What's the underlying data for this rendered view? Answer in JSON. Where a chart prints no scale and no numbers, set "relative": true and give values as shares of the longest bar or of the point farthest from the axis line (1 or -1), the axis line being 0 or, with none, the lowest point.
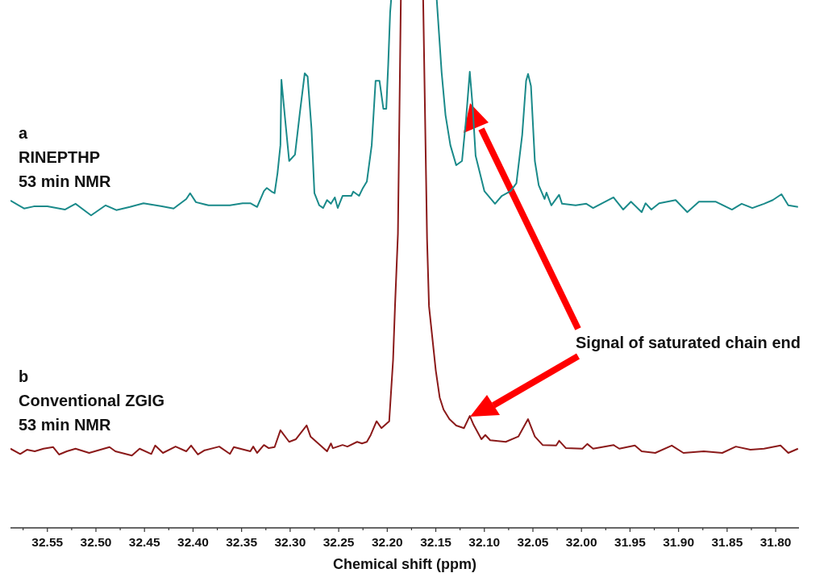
{
  "chart_data": {
    "type": "line",
    "relative": true,
    "xlabel": "Chemical shift (ppm)",
    "xlim": [
      32.588,
      31.776
    ],
    "xticks": [
      32.55,
      {
        "value": 32.5,
        "label": "32.50"
      },
      32.45,
      {
        "value": 32.4,
        "label": "32.40"
      },
      32.35,
      {
        "value": 32.3,
        "label": "32.30"
      },
      32.25,
      {
        "value": 32.2,
        "label": "32.20"
      },
      32.15,
      {
        "value": 32.1,
        "label": "32.10"
      },
      32.05,
      {
        "value": 32.0,
        "label": "32.00"
      },
      31.95,
      {
        "value": 31.9,
        "label": "31.90"
      },
      31.85,
      {
        "value": 31.8,
        "label": "31.80"
      },
      {
        "value": 32.575,
        "label": null
      },
      {
        "value": 32.525,
        "label": null
      },
      {
        "value": 32.475,
        "label": null
      },
      {
        "value": 32.425,
        "label": null
      },
      {
        "value": 32.375,
        "label": null
      },
      {
        "value": 32.325,
        "label": null
      },
      {
        "value": 32.275,
        "label": null
      },
      {
        "value": 32.225,
        "label": null
      },
      {
        "value": 32.175,
        "label": null
      },
      {
        "value": 32.125,
        "label": null
      },
      {
        "value": 32.075,
        "label": null
      },
      {
        "value": 32.025,
        "label": null
      },
      {
        "value": 31.975,
        "label": null
      },
      {
        "value": 31.925,
        "label": null
      },
      {
        "value": 31.875,
        "label": null
      },
      {
        "value": 31.825,
        "label": null
      }
    ],
    "grid": false,
    "marker": "none",
    "line_style": "solid",
    "series": [
      {
        "name": "RINEPTHP",
        "color": "#1a8a8a",
        "x": [
          32.588,
          32.574,
          32.564,
          32.55,
          32.532,
          32.521,
          32.505,
          32.49,
          32.479,
          32.465,
          32.451,
          32.432,
          32.42,
          32.407,
          32.403,
          32.397,
          32.384,
          32.362,
          32.349,
          32.341,
          32.334,
          32.327,
          32.324,
          32.319,
          32.316,
          32.313,
          32.31,
          32.309,
          32.305,
          32.301,
          32.295,
          32.29,
          32.285,
          32.282,
          32.278,
          32.275,
          32.27,
          32.266,
          32.262,
          32.258,
          32.254,
          32.251,
          32.246,
          32.237,
          32.235,
          32.229,
          32.225,
          32.221,
          32.216,
          32.212,
          32.208,
          32.204,
          32.201,
          32.199,
          32.197,
          32.196,
          32.17,
          32.149,
          32.144,
          32.14,
          32.135,
          32.129,
          32.123,
          32.119,
          32.115,
          32.112,
          32.109,
          32.1,
          32.089,
          32.082,
          32.073,
          32.067,
          32.061,
          32.057,
          32.055,
          32.052,
          32.048,
          32.044,
          32.038,
          32.036,
          32.031,
          32.023,
          32.02,
          32.006,
          31.995,
          31.988,
          31.967,
          31.957,
          31.949,
          31.938,
          31.934,
          31.928,
          31.92,
          31.903,
          31.891,
          31.879,
          31.862,
          31.845,
          31.835,
          31.824,
          31.812,
          31.803,
          31.794,
          31.787,
          31.777
        ],
        "values": [
          0.62,
          0.605,
          0.609,
          0.609,
          0.603,
          0.614,
          0.592,
          0.611,
          0.602,
          0.608,
          0.615,
          0.609,
          0.605,
          0.623,
          0.634,
          0.617,
          0.611,
          0.611,
          0.615,
          0.615,
          0.608,
          0.638,
          0.644,
          0.637,
          0.634,
          0.672,
          0.725,
          0.849,
          0.771,
          0.695,
          0.707,
          0.786,
          0.861,
          0.855,
          0.756,
          0.634,
          0.611,
          0.606,
          0.621,
          0.614,
          0.626,
          0.606,
          0.629,
          0.629,
          0.637,
          0.629,
          0.644,
          0.656,
          0.725,
          0.847,
          0.847,
          0.794,
          0.794,
          0.878,
          0.977,
          1.0,
          null,
          1.0,
          0.863,
          0.782,
          0.725,
          0.687,
          0.695,
          0.771,
          0.864,
          0.797,
          0.705,
          0.638,
          0.614,
          0.629,
          0.638,
          0.653,
          0.745,
          0.847,
          0.86,
          0.837,
          0.695,
          0.649,
          0.623,
          0.635,
          0.611,
          0.631,
          0.614,
          0.611,
          0.614,
          0.606,
          0.626,
          0.603,
          0.618,
          0.598,
          0.615,
          0.603,
          0.615,
          0.621,
          0.598,
          0.618,
          0.618,
          0.603,
          0.614,
          0.606,
          0.614,
          0.621,
          0.632,
          0.611,
          0.608
        ]
      },
      {
        "name": "Conventional ZGIG",
        "color": "#8b1a1a",
        "x": [
          32.588,
          32.578,
          32.571,
          32.563,
          32.554,
          32.544,
          32.538,
          32.53,
          32.521,
          32.507,
          32.486,
          32.48,
          32.463,
          32.455,
          32.443,
          32.439,
          32.431,
          32.418,
          32.407,
          32.402,
          32.395,
          32.388,
          32.373,
          32.362,
          32.358,
          32.341,
          32.338,
          32.334,
          32.327,
          32.322,
          32.316,
          32.31,
          32.301,
          32.294,
          32.283,
          32.279,
          32.262,
          32.258,
          32.256,
          32.246,
          32.241,
          32.231,
          32.226,
          32.221,
          32.217,
          32.211,
          32.206,
          32.198,
          32.194,
          32.192,
          32.189,
          32.186,
          32.17,
          32.163,
          32.159,
          32.157,
          32.15,
          32.146,
          32.142,
          32.136,
          32.129,
          32.121,
          32.115,
          32.111,
          32.103,
          32.099,
          32.094,
          32.078,
          32.065,
          32.055,
          32.048,
          32.04,
          32.026,
          32.023,
          32.016,
          31.999,
          31.994,
          31.988,
          31.967,
          31.961,
          31.945,
          31.938,
          31.924,
          31.907,
          31.895,
          31.874,
          31.855,
          31.841,
          31.826,
          31.812,
          31.795,
          31.787,
          31.777
        ],
        "values": [
          0.15,
          0.14,
          0.148,
          0.145,
          0.15,
          0.153,
          0.139,
          0.145,
          0.15,
          0.142,
          0.153,
          0.145,
          0.137,
          0.15,
          0.14,
          0.156,
          0.142,
          0.154,
          0.145,
          0.156,
          0.139,
          0.147,
          0.154,
          0.14,
          0.153,
          0.145,
          0.154,
          0.142,
          0.157,
          0.151,
          0.153,
          0.185,
          0.163,
          0.168,
          0.194,
          0.173,
          0.145,
          0.16,
          0.151,
          0.157,
          0.154,
          0.163,
          0.16,
          0.163,
          0.176,
          0.202,
          0.189,
          0.202,
          0.318,
          0.42,
          0.557,
          1.0,
          null,
          1.0,
          0.547,
          0.42,
          0.298,
          0.247,
          0.224,
          0.206,
          0.194,
          0.189,
          0.212,
          0.195,
          0.168,
          0.176,
          0.166,
          0.163,
          0.173,
          0.206,
          0.173,
          0.157,
          0.156,
          0.165,
          0.151,
          0.15,
          0.159,
          0.15,
          0.157,
          0.15,
          0.156,
          0.145,
          0.142,
          0.156,
          0.142,
          0.145,
          0.142,
          0.154,
          0.148,
          0.15,
          0.156,
          0.142,
          0.15
        ]
      }
    ],
    "annotations": [
      "a",
      "53 min NMR",
      "b",
      "53 min NMR",
      "Signal of saturated chain end"
    ]
  }
}
